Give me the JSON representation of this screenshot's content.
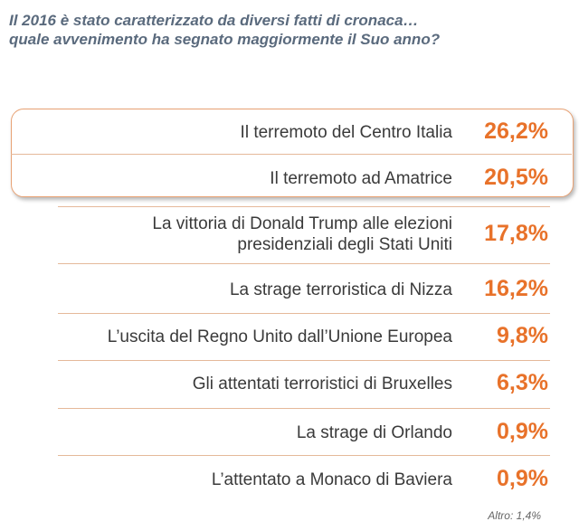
{
  "question": {
    "line1": "Il 2016 è stato caratterizzato da diversi fatti di cronaca…",
    "line2": "quale avvenimento ha segnato maggiormente il Suo anno?"
  },
  "chart_data": {
    "type": "table",
    "rows": [
      {
        "label": [
          "Il terremoto del Centro Italia"
        ],
        "value": "26,2%"
      },
      {
        "label": [
          "Il terremoto ad Amatrice"
        ],
        "value": "20,5%"
      },
      {
        "label": [
          "La vittoria di Donald Trump alle elezioni",
          "presidenziali degli Stati Uniti"
        ],
        "value": "17,8%"
      },
      {
        "label": [
          "La strage terroristica di Nizza"
        ],
        "value": "16,2%"
      },
      {
        "label": [
          "L’uscita del Regno Unito dall’Unione Europea"
        ],
        "value": "9,8%"
      },
      {
        "label": [
          "Gli attentati terroristici di Bruxelles"
        ],
        "value": "6,3%"
      },
      {
        "label": [
          "La strage di Orlando"
        ],
        "value": "0,9%"
      },
      {
        "label": [
          "L’attentato a Monaco di Baviera"
        ],
        "value": "0,9%"
      }
    ],
    "highlighted_rows": 2,
    "accent_color": "#e8722a",
    "other": "Altro: 1,4%"
  }
}
